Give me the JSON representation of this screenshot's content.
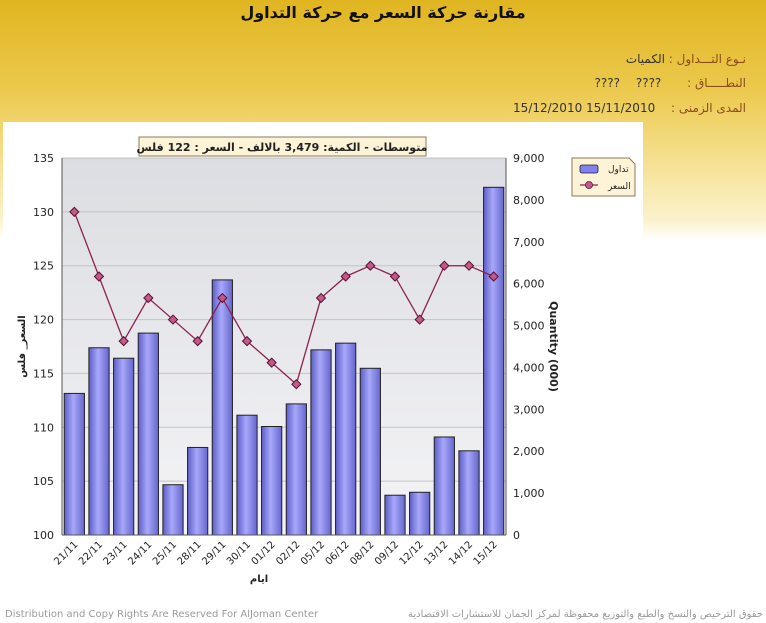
{
  "page": {
    "title": "مقارنة حركة السعر مع حركة التداول",
    "trade_type_label": "نـوع التـــداول :",
    "trade_type_value": "الكميات",
    "range_label": "النطـــــاق :",
    "range_value1": "????",
    "range_value2": "????",
    "period_label": "المدى الزمنى :",
    "period_value": "15/11/2010 15/12/2010",
    "footer_left": "Distribution and Copy Rights Are Reserved For AlJoman Center",
    "footer_right": "حقوق الترخيص والنسخ والطبع والتوزيع محفوظة لمركز الجمان للاستشارات الاقتصادية"
  },
  "chart_data": {
    "type": "bar",
    "annotation": "متوسطات - الكمية: 3,479 بالالف  - السعر : 122 فلس",
    "xlabel": "ايام",
    "ylabel_left": "السعر_ فلس",
    "ylabel_right": "Quantity (000)",
    "categories": [
      "21/11",
      "22/11",
      "23/11",
      "24/11",
      "25/11",
      "28/11",
      "29/11",
      "30/11",
      "01/12",
      "02/12",
      "05/12",
      "06/12",
      "08/12",
      "09/12",
      "12/12",
      "13/12",
      "14/12",
      "15/12"
    ],
    "series": [
      {
        "name": "تداول",
        "type": "bar",
        "axis": "right",
        "color": "#8080ee",
        "values": [
          3380,
          4470,
          4220,
          4820,
          1200,
          2090,
          6090,
          2860,
          2590,
          3130,
          4420,
          4580,
          3980,
          950,
          1020,
          2340,
          2010,
          8300
        ]
      },
      {
        "name": "السعر",
        "type": "line",
        "axis": "left",
        "color": "#8b2252",
        "values": [
          130.0,
          124.0,
          118.0,
          122.0,
          120.0,
          118.0,
          122.0,
          118.0,
          116.0,
          114.0,
          122.0,
          124.0,
          125.0,
          124.0,
          120.0,
          125.0,
          125.0,
          124.0
        ]
      }
    ],
    "ylim_left": [
      100,
      135
    ],
    "ylim_right": [
      0,
      9000
    ],
    "yticks_left": [
      100,
      105,
      110,
      115,
      120,
      125,
      130,
      135
    ],
    "yticks_right": [
      "0",
      "1,000",
      "2,000",
      "3,000",
      "4,000",
      "5,000",
      "6,000",
      "7,000",
      "8,000",
      "9,000"
    ],
    "legend_placement": "top-right",
    "grid": true
  }
}
